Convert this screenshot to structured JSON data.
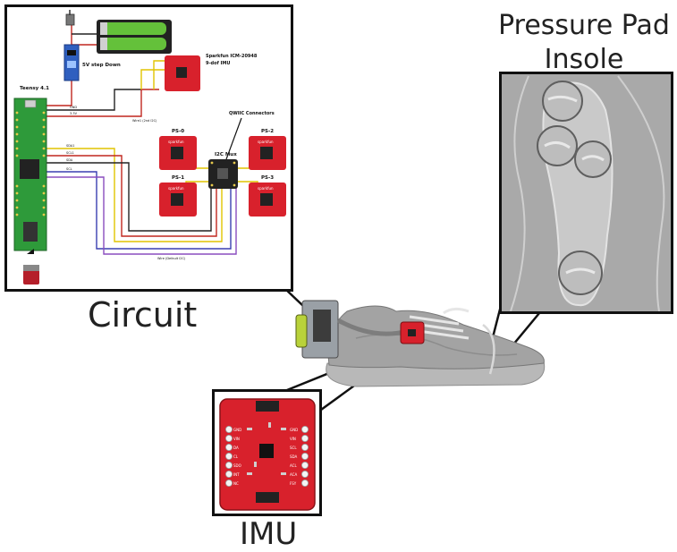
{
  "captions": {
    "pressure_pad": [
      "Pressure Pad",
      "Insole"
    ],
    "circuit": "Circuit",
    "imu": "IMU"
  },
  "schematic": {
    "teensy_label": "Teensy 4.1",
    "stepdown_label": "5V step Down",
    "imu_title": "Sparkfun ICM-20948",
    "imu_subtitle": "9-dof IMU",
    "qwiic_label": "QWIIC Connectors",
    "mux_label": "I2C Mux",
    "ps0": "PS-0",
    "ps1": "PS-1",
    "ps2": "PS-2",
    "ps3": "PS-3",
    "wire_note": "Wire (Default I2C)",
    "wire1_note": "Wire1 (2nd I2C)",
    "pin_gnd": "GND",
    "pin_3v3": "3.3V",
    "pin_sda": "SDA",
    "pin_scl": "SCL",
    "pin_scl1": "SCL1",
    "pin_sda1": "SDA1",
    "brand": "sparkfun"
  },
  "imu_board": {
    "left_pins": [
      "GND",
      "VIN",
      "DA",
      "CL",
      "SDO",
      "INT",
      "NC"
    ],
    "right_pins": [
      "GND",
      "VIN",
      "SCL",
      "SDA",
      "ACL",
      "ACA",
      "FSY"
    ]
  },
  "colors": {
    "board_red": "#d8212c",
    "teensy_green": "#2e9a3a",
    "wire_yellow": "#e0c400",
    "wire_red": "#c0271f",
    "wire_black": "#222222",
    "wire_blue": "#3a3fb0",
    "wire_purple": "#8a4dbf",
    "insole_bg": "#a9a9a9",
    "shoe_grey": "#bcbcbc"
  }
}
